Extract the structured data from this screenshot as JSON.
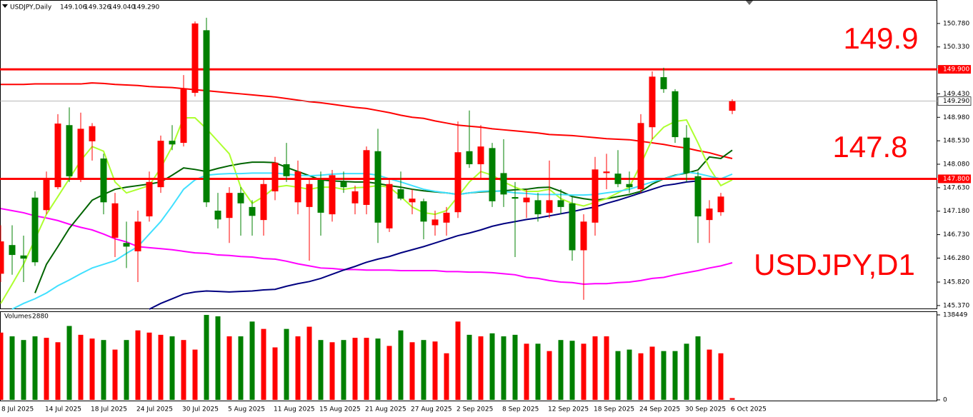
{
  "chart_data": [
    {
      "type": "candlestick",
      "title": "USDJPY,Daily",
      "ohlc_labels": [
        "149.106",
        "149.326",
        "149.040",
        "149.290"
      ],
      "watermark": "USDJPY,D1",
      "categories": [
        "8 Jul 2025",
        null,
        null,
        null,
        "14 Jul 2025",
        null,
        null,
        null,
        "18 Jul 2025",
        null,
        null,
        null,
        "24 Jul 2025",
        null,
        null,
        null,
        "30 Jul 2025",
        null,
        null,
        null,
        "5 Aug 2025",
        null,
        null,
        null,
        "11 Aug 2025",
        null,
        null,
        null,
        "15 Aug 2025",
        null,
        null,
        null,
        "21 Aug 2025",
        null,
        null,
        null,
        "27 Aug 2025",
        null,
        null,
        null,
        "2 Sep 2025",
        null,
        null,
        null,
        "8 Sep 2025",
        null,
        null,
        null,
        "12 Sep 2025",
        null,
        null,
        null,
        "18 Sep 2025",
        null,
        null,
        null,
        "24 Sep 2025",
        null,
        null,
        null,
        "30 Sep 2025",
        null,
        null,
        null,
        "6 Oct 2025"
      ],
      "open": [
        145.98,
        146.53,
        146.33,
        147.44,
        147.2,
        147.64,
        148.83,
        147.8,
        148.52,
        148.19,
        146.67,
        146.57,
        146.41,
        147.08,
        147.64,
        148.53,
        148.49,
        149.45,
        150.65,
        147.19,
        147.05,
        147.53,
        147.26,
        147.01,
        147.56,
        148.08,
        147.35,
        147.26,
        147.78,
        147.12,
        147.74,
        147.33,
        147.3,
        148.33,
        146.85,
        147.6,
        147.35,
        147.37,
        146.91,
        146.96,
        147.16,
        148.33,
        148.08,
        148.39,
        147.91,
        147.45,
        147.35,
        147.39,
        147.15,
        147.39,
        147.33,
        146.43,
        146.96,
        147.91,
        147.9,
        147.7,
        147.6,
        148.79,
        149.75,
        149.48,
        148.59,
        147.85,
        147.01,
        147.16,
        149.106
      ],
      "high": [
        146.91,
        146.91,
        146.71,
        147.56,
        147.94,
        149.04,
        149.17,
        149.07,
        148.87,
        148.28,
        147.53,
        146.98,
        147.19,
        147.94,
        148.63,
        148.83,
        149.79,
        150.82,
        150.89,
        147.53,
        147.64,
        147.64,
        147.39,
        147.8,
        148.22,
        148.49,
        148.15,
        147.8,
        147.94,
        147.97,
        147.94,
        147.67,
        148.42,
        148.76,
        147.8,
        147.94,
        147.6,
        147.42,
        147.19,
        147.26,
        148.9,
        149.11,
        148.83,
        148.49,
        148.56,
        147.74,
        147.6,
        147.53,
        148.15,
        147.6,
        147.46,
        147.12,
        148.22,
        148.28,
        148.35,
        147.94,
        149.04,
        149.86,
        149.93,
        149.52,
        148.83,
        147.94,
        147.39,
        147.53,
        149.326
      ],
      "low": [
        145.82,
        145.96,
        145.82,
        146.13,
        147.12,
        147.6,
        147.74,
        147.74,
        148.15,
        147.12,
        146.3,
        146.09,
        145.82,
        146.98,
        147.53,
        148.35,
        148.42,
        149.38,
        147.26,
        146.85,
        146.57,
        146.71,
        146.71,
        146.71,
        147.39,
        147.74,
        147.12,
        146.23,
        146.71,
        146.98,
        147.53,
        147.12,
        147.12,
        146.57,
        146.78,
        147.39,
        147.12,
        146.64,
        146.71,
        146.71,
        147.05,
        148.01,
        147.8,
        147.26,
        147.26,
        146.3,
        147.05,
        146.98,
        147.05,
        147.12,
        146.23,
        145.48,
        146.71,
        147.6,
        147.64,
        147.53,
        147.53,
        148.56,
        149.45,
        148.49,
        147.74,
        146.57,
        146.57,
        147.09,
        149.04
      ],
      "close": [
        146.6,
        146.34,
        146.27,
        146.2,
        147.8,
        148.86,
        147.85,
        148.76,
        148.81,
        147.35,
        147.33,
        146.5,
        146.98,
        147.74,
        148.53,
        148.46,
        149.52,
        150.78,
        147.35,
        147.02,
        147.53,
        147.33,
        147.09,
        147.7,
        148.11,
        147.85,
        147.94,
        147.7,
        147.15,
        147.87,
        147.64,
        147.56,
        148.35,
        146.96,
        147.7,
        147.42,
        147.42,
        146.98,
        147.02,
        147.15,
        148.31,
        148.08,
        148.42,
        147.37,
        147.5,
        147.42,
        147.44,
        147.12,
        147.39,
        147.26,
        146.43,
        146.98,
        147.98,
        147.94,
        147.7,
        147.64,
        148.87,
        149.76,
        149.52,
        148.6,
        147.91,
        147.08,
        147.23,
        147.46,
        149.29
      ],
      "up_color": "#ff0000",
      "down_color": "#008000",
      "series": [
        {
          "color": "#ff0000",
          "values": [
            149.61,
            149.61,
            149.61,
            149.62,
            149.62,
            149.62,
            149.62,
            149.62,
            149.64,
            149.63,
            149.61,
            149.6,
            149.59,
            149.57,
            149.56,
            149.55,
            149.53,
            149.51,
            149.49,
            149.47,
            149.45,
            149.43,
            149.41,
            149.39,
            149.37,
            149.34,
            149.31,
            149.28,
            149.26,
            149.23,
            149.2,
            149.17,
            149.15,
            149.11,
            149.07,
            149.02,
            148.98,
            148.96,
            148.91,
            148.87,
            148.83,
            148.81,
            148.79,
            148.76,
            148.74,
            148.72,
            148.7,
            148.68,
            148.65,
            148.64,
            148.63,
            148.61,
            148.59,
            148.57,
            148.56,
            148.55,
            148.52,
            148.49,
            148.46,
            148.42,
            148.39,
            148.34,
            148.3,
            148.24,
            148.19
          ]
        },
        {
          "color": "#ff00ff",
          "values": [
            147.23,
            147.19,
            147.15,
            147.09,
            147.05,
            147.0,
            146.93,
            146.87,
            146.82,
            146.74,
            146.65,
            146.59,
            146.5,
            146.48,
            146.46,
            146.44,
            146.41,
            146.38,
            146.37,
            146.34,
            146.33,
            146.31,
            146.3,
            146.27,
            146.26,
            146.22,
            146.17,
            146.13,
            146.09,
            146.08,
            146.06,
            146.06,
            146.05,
            146.05,
            146.05,
            146.04,
            146.04,
            146.04,
            146.04,
            146.02,
            146.02,
            146.01,
            146.01,
            146.0,
            145.98,
            145.96,
            145.91,
            145.89,
            145.85,
            145.82,
            145.81,
            145.78,
            145.79,
            145.79,
            145.81,
            145.82,
            145.85,
            145.89,
            145.91,
            145.96,
            146.0,
            146.04,
            146.09,
            146.13,
            146.19
          ]
        },
        {
          "color": "#000080",
          "values": [
            null,
            null,
            null,
            null,
            null,
            null,
            null,
            null,
            null,
            null,
            null,
            null,
            null,
            145.3,
            145.41,
            145.5,
            145.59,
            145.63,
            145.65,
            145.64,
            145.63,
            145.64,
            145.65,
            145.67,
            145.68,
            145.74,
            145.79,
            145.83,
            145.89,
            145.97,
            146.05,
            146.12,
            146.2,
            146.26,
            146.31,
            146.38,
            146.44,
            146.5,
            146.57,
            146.64,
            146.71,
            146.76,
            146.82,
            146.89,
            146.94,
            146.98,
            147.02,
            147.05,
            147.09,
            147.13,
            147.17,
            147.22,
            147.26,
            147.33,
            147.39,
            147.46,
            147.53,
            147.6,
            147.67,
            147.7,
            147.74,
            147.76,
            null,
            null,
            null
          ]
        },
        {
          "color": "#006400",
          "values": [
            null,
            null,
            null,
            145.61,
            146.16,
            146.5,
            146.85,
            147.12,
            147.39,
            147.5,
            147.6,
            147.64,
            147.67,
            147.7,
            147.74,
            147.87,
            148.01,
            147.98,
            147.94,
            148.0,
            148.05,
            148.09,
            148.12,
            148.12,
            148.11,
            148.02,
            147.94,
            147.86,
            147.78,
            147.76,
            147.75,
            147.74,
            147.74,
            147.71,
            147.67,
            147.64,
            147.6,
            147.57,
            147.55,
            147.53,
            147.5,
            147.53,
            147.55,
            147.56,
            147.57,
            147.59,
            147.6,
            147.63,
            147.64,
            147.56,
            147.46,
            147.42,
            147.39,
            147.42,
            147.46,
            147.5,
            147.56,
            147.7,
            147.8,
            147.87,
            147.91,
            147.97,
            148.22,
            148.19,
            148.35
          ]
        },
        {
          "color": "#adff2f",
          "values": [
            145.41,
            145.78,
            146.16,
            146.64,
            147.12,
            147.46,
            147.8,
            148.15,
            148.42,
            148.33,
            147.74,
            147.53,
            147.6,
            147.67,
            148.01,
            148.42,
            148.97,
            148.97,
            148.76,
            148.52,
            148.28,
            147.64,
            147.33,
            147.46,
            147.64,
            147.67,
            147.64,
            147.6,
            147.64,
            147.64,
            147.6,
            147.63,
            147.64,
            147.67,
            147.64,
            147.46,
            147.26,
            147.15,
            147.12,
            147.19,
            147.46,
            147.74,
            147.94,
            147.87,
            147.74,
            147.64,
            147.56,
            147.56,
            147.6,
            147.42,
            147.33,
            147.28,
            147.35,
            147.42,
            147.53,
            147.64,
            148.08,
            148.56,
            148.79,
            148.9,
            148.93,
            148.49,
            148.01,
            147.67,
            147.78
          ]
        },
        {
          "color": "#40e0ff",
          "values": [
            null,
            145.3,
            145.41,
            145.5,
            145.61,
            145.75,
            145.86,
            145.98,
            146.09,
            146.16,
            146.23,
            146.37,
            146.5,
            146.74,
            146.98,
            147.28,
            147.6,
            147.78,
            147.87,
            147.89,
            147.9,
            147.9,
            147.91,
            147.91,
            147.91,
            147.89,
            147.87,
            147.86,
            147.87,
            147.89,
            147.9,
            147.9,
            147.9,
            147.87,
            147.8,
            147.74,
            147.67,
            147.6,
            147.56,
            147.53,
            147.5,
            147.53,
            147.56,
            147.57,
            147.56,
            147.53,
            147.52,
            147.5,
            147.5,
            147.5,
            147.49,
            147.49,
            147.5,
            147.53,
            147.56,
            147.6,
            147.67,
            147.74,
            147.8,
            147.86,
            147.93,
            147.9,
            147.85,
            147.8,
            147.89
          ]
        }
      ],
      "levels": [
        {
          "value": 149.9,
          "label": "149.900",
          "annotation": "149.9",
          "color": "#ff0000"
        },
        {
          "value": 147.8,
          "label": "147.800",
          "annotation": "147.8",
          "color": "#ff0000"
        }
      ],
      "current_price": {
        "value": 149.29,
        "label": "149.290"
      },
      "ylim": [
        145.3,
        151.23
      ],
      "yticks": [
        {
          "value": 150.78,
          "label": "150.780"
        },
        {
          "value": 150.33,
          "label": "150.330"
        },
        {
          "value": 149.43,
          "label": "149.430"
        },
        {
          "value": 148.98,
          "label": "148.980"
        },
        {
          "value": 148.53,
          "label": "148.530"
        },
        {
          "value": 148.08,
          "label": "148.080"
        },
        {
          "value": 147.63,
          "label": "147.630"
        },
        {
          "value": 147.18,
          "label": "147.180"
        },
        {
          "value": 146.73,
          "label": "146.730"
        },
        {
          "value": 146.28,
          "label": "146.280"
        },
        {
          "value": 145.82,
          "label": "145.820"
        },
        {
          "value": 145.37,
          "label": "145.370"
        }
      ],
      "grid": false
    },
    {
      "type": "bar",
      "title": "Volumes",
      "values": [
        109600,
        103500,
        97500,
        103500,
        101100,
        93900,
        120400,
        106000,
        99900,
        97500,
        81900,
        97500,
        113200,
        109600,
        106000,
        103500,
        97500,
        81900,
        138400,
        136100,
        103500,
        103500,
        127600,
        115600,
        85500,
        115600,
        103500,
        119200,
        97500,
        93900,
        97500,
        101100,
        101100,
        99900,
        87900,
        113200,
        93900,
        97500,
        95100,
        75900,
        127600,
        106000,
        103500,
        108400,
        103500,
        106000,
        91500,
        91500,
        79500,
        97500,
        96300,
        91500,
        103500,
        103500,
        79500,
        81900,
        75900,
        86700,
        79500,
        79500,
        91500,
        103500,
        81900,
        75900,
        2880
      ],
      "ylim": [
        0,
        138449
      ],
      "yticks": [
        138449,
        0
      ],
      "grid": false
    }
  ]
}
